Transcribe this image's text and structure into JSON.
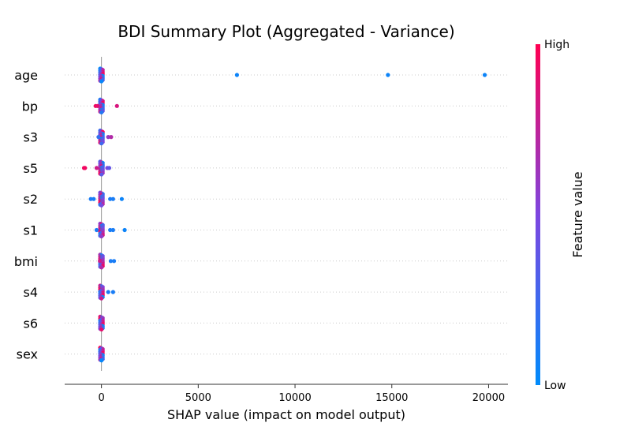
{
  "chart_data": {
    "type": "scatter",
    "title": "BDI Summary Plot (Aggregated - Variance)",
    "xlabel": "SHAP value (impact on model output)",
    "ylabel": "",
    "xlim": [
      -1900,
      21000
    ],
    "xticks": [
      0,
      5000,
      10000,
      15000,
      20000
    ],
    "xtick_labels": [
      "0",
      "5000",
      "10000",
      "15000",
      "20000"
    ],
    "features": [
      "age",
      "bp",
      "s3",
      "s5",
      "s2",
      "s1",
      "bmi",
      "s4",
      "s6",
      "sex"
    ],
    "colorbar": {
      "label": "Feature value",
      "high_label": "High",
      "low_label": "Low",
      "low_color": "#008bfb",
      "high_color": "#ff0052"
    },
    "points": [
      {
        "feature": "age",
        "x": 7000,
        "v": 0.05
      },
      {
        "feature": "age",
        "x": 14800,
        "v": 0.05
      },
      {
        "feature": "age",
        "x": 19800,
        "v": 0.05
      },
      {
        "feature": "bp",
        "x": -300,
        "v": 0.95
      },
      {
        "feature": "bp",
        "x": -200,
        "v": 0.9
      },
      {
        "feature": "bp",
        "x": 800,
        "v": 0.85
      },
      {
        "feature": "s3",
        "x": 350,
        "v": 0.6
      },
      {
        "feature": "s3",
        "x": 500,
        "v": 0.7
      },
      {
        "feature": "s3",
        "x": -150,
        "v": 0.2
      },
      {
        "feature": "s5",
        "x": -900,
        "v": 0.95
      },
      {
        "feature": "s5",
        "x": -850,
        "v": 0.95
      },
      {
        "feature": "s5",
        "x": -250,
        "v": 0.8
      },
      {
        "feature": "s5",
        "x": 300,
        "v": 0.5
      },
      {
        "feature": "s5",
        "x": 400,
        "v": 0.4
      },
      {
        "feature": "s2",
        "x": -550,
        "v": 0.1
      },
      {
        "feature": "s2",
        "x": -400,
        "v": 0.1
      },
      {
        "feature": "s2",
        "x": 450,
        "v": 0.1
      },
      {
        "feature": "s2",
        "x": 600,
        "v": 0.1
      },
      {
        "feature": "s2",
        "x": 1050,
        "v": 0.05
      },
      {
        "feature": "s1",
        "x": -250,
        "v": 0.1
      },
      {
        "feature": "s1",
        "x": 450,
        "v": 0.1
      },
      {
        "feature": "s1",
        "x": 600,
        "v": 0.1
      },
      {
        "feature": "s1",
        "x": 1200,
        "v": 0.05
      },
      {
        "feature": "bmi",
        "x": -80,
        "v": 0.8
      },
      {
        "feature": "bmi",
        "x": 480,
        "v": 0.1
      },
      {
        "feature": "bmi",
        "x": 650,
        "v": 0.1
      },
      {
        "feature": "s4",
        "x": 350,
        "v": 0.1
      },
      {
        "feature": "s4",
        "x": 600,
        "v": 0.1
      }
    ]
  }
}
